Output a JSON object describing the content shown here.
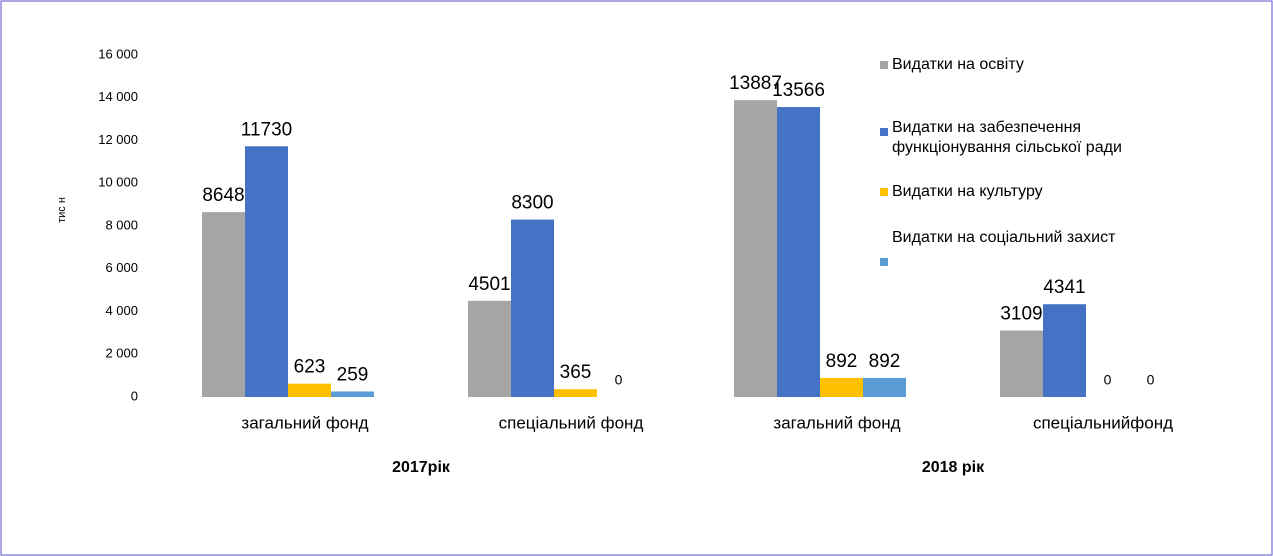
{
  "chart_data": {
    "type": "bar",
    "y_label": "тис н",
    "categories": [
      "загальний фонд",
      "спеціальний фонд",
      "загальний фонд",
      "спеціальнийфонд"
    ],
    "group_labels": [
      "2017рік",
      "2018 рік"
    ],
    "series": [
      {
        "name": "Видатки на освіту",
        "color": "#a5a5a5",
        "values": [
          8648,
          4501,
          13887,
          3109
        ]
      },
      {
        "name": "Видатки на забезпечення функціонування сільської ради",
        "color": "#4472c4",
        "values": [
          11730,
          8300,
          13566,
          4341
        ]
      },
      {
        "name": "Видатки на культуру",
        "color": "#ffc000",
        "values": [
          623,
          365,
          892,
          0
        ]
      },
      {
        "name": "Видатки на соціальний захист",
        "color": "#5b9bd5",
        "values": [
          259,
          0,
          892,
          0
        ]
      }
    ],
    "ylim": [
      0,
      16000
    ],
    "yticks": [
      {
        "value": 0,
        "label": "0"
      },
      {
        "value": 2000,
        "label": "2 000"
      },
      {
        "value": 4000,
        "label": "4 000"
      },
      {
        "value": 6000,
        "label": "6 000"
      },
      {
        "value": 8000,
        "label": "8 000"
      },
      {
        "value": 10000,
        "label": "10 000"
      },
      {
        "value": 12000,
        "label": "12 000"
      },
      {
        "value": 14000,
        "label": "14 000"
      },
      {
        "value": 16000,
        "label": "16 000"
      }
    ],
    "grid": false,
    "legend": "upper right"
  }
}
